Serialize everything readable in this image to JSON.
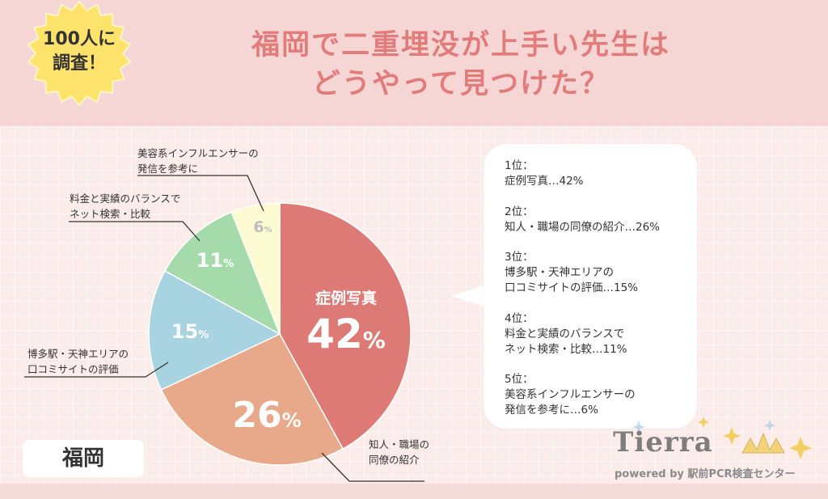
{
  "header": {
    "title_line1": "福岡で二重埋没が上手い先生は",
    "title_line2": "どうやって見つけた？",
    "badge_line1": "100人に",
    "badge_line2": "調査！"
  },
  "colors": {
    "title": "#e27c7b",
    "slice_1": "#de7a75",
    "slice_2": "#e8a98a",
    "slice_3": "#a8d3e0",
    "slice_4": "#a5dbaa",
    "slice_5": "#fbfad1",
    "badge": "#fde36b"
  },
  "chart_data": {
    "type": "pie",
    "slices": [
      {
        "label": "症例写真",
        "value": 42,
        "value_label": "42%"
      },
      {
        "label": "知人・職場の同僚の紹介",
        "value": 26,
        "value_label": "26%"
      },
      {
        "label": "博多駅・天神エリアの口コミサイトの評価",
        "value": 15,
        "value_label": "15%"
      },
      {
        "label": "料金と実績のバランスでネット検索・比較",
        "value": 11,
        "value_label": "11%"
      },
      {
        "label": "美容系インフルエンサーの発信を参考に",
        "value": 6,
        "value_label": "6%"
      }
    ],
    "inner_label": "症例写真"
  },
  "callouts": {
    "c2_line1": "知人・職場の",
    "c2_line2": "同僚の紹介",
    "c3_line1": "博多駅・天神エリアの",
    "c3_line2": "口コミサイトの評価",
    "c4_line1": "料金と実績のバランスで",
    "c4_line2": "ネット検索・比較",
    "c5_line1": "美容系インフルエンサーの",
    "c5_line2": "発信を参考に"
  },
  "ranking": {
    "r1_head": "1位：",
    "r1_body": "症例写真…42%",
    "r2_head": "2位：",
    "r2_body": "知人・職場の同僚の紹介…26%",
    "r3_head": "3位：",
    "r3_body1": "博多駅・天神エリアの",
    "r3_body2": "口コミサイトの評価…15%",
    "r4_head": "4位：",
    "r4_body1": "料金と実績のバランスで",
    "r4_body2": "ネット検索・比較…11%",
    "r5_head": "5位：",
    "r5_body1": "美容系インフルエンサーの",
    "r5_body2": "発信を参考に…6%"
  },
  "region": "福岡",
  "logo": {
    "word": "Tierra",
    "sub": "powered by 駅前PCR検査センター"
  }
}
